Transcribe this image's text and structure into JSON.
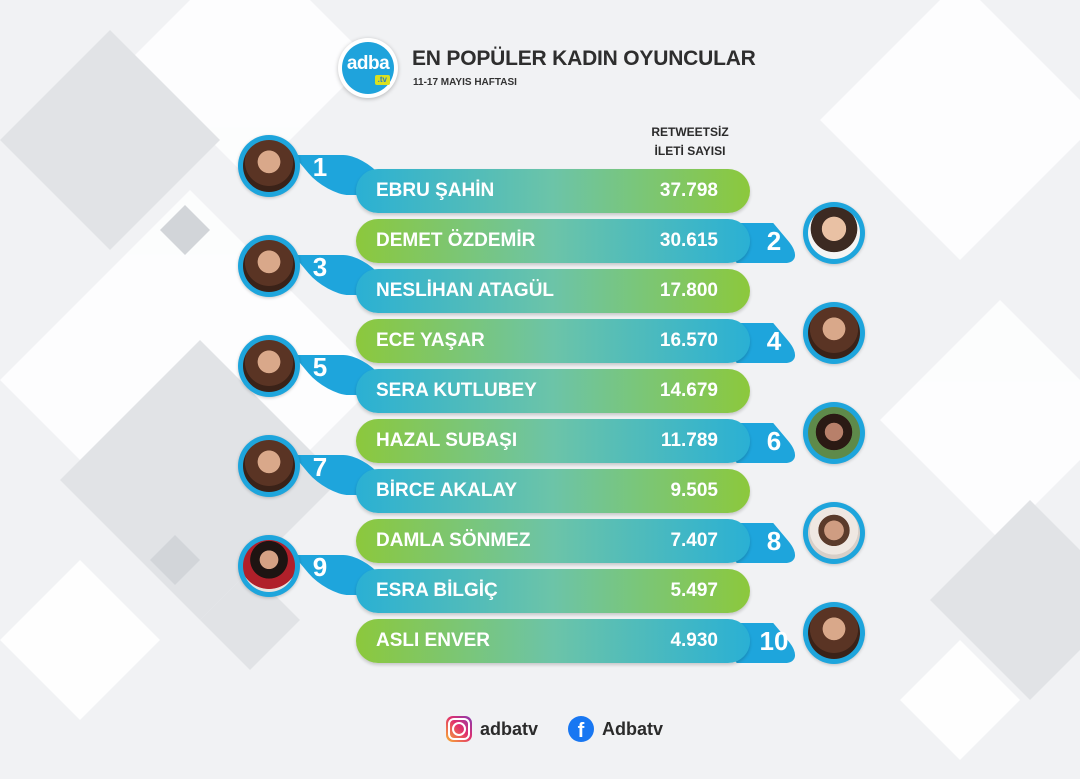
{
  "header": {
    "logo_text": "adba",
    "logo_sub": ".tv",
    "title": "EN POPÜLER KADIN OYUNCULAR",
    "subtitle": "11-17 MAYIS HAFTASI",
    "column_heading_line1": "RETWEETSİZ",
    "column_heading_line2": "İLETİ SAYISI"
  },
  "ranking": [
    {
      "rank": "1",
      "name": "EBRU ŞAHİN",
      "value": "37.798"
    },
    {
      "rank": "2",
      "name": "DEMET ÖZDEMİR",
      "value": "30.615"
    },
    {
      "rank": "3",
      "name": "NESLİHAN ATAGÜL",
      "value": "17.800"
    },
    {
      "rank": "4",
      "name": "ECE YAŞAR",
      "value": "16.570"
    },
    {
      "rank": "5",
      "name": "SERA KUTLUBEY",
      "value": "14.679"
    },
    {
      "rank": "6",
      "name": "HAZAL SUBAŞI",
      "value": "11.789"
    },
    {
      "rank": "7",
      "name": "BİRCE AKALAY",
      "value": "9.505"
    },
    {
      "rank": "8",
      "name": "DAMLA SÖNMEZ",
      "value": "7.407"
    },
    {
      "rank": "9",
      "name": "ESRA BİLGİÇ",
      "value": "5.497"
    },
    {
      "rank": "10",
      "name": "ASLI ENVER",
      "value": "4.930"
    }
  ],
  "footer": {
    "instagram": {
      "icon": "instagram-icon",
      "handle": "adbatv"
    },
    "facebook": {
      "icon": "facebook-icon",
      "handle": "Adbatv"
    }
  },
  "colors": {
    "accent_blue": "#1ea5dc",
    "accent_green": "#8cc83c"
  }
}
